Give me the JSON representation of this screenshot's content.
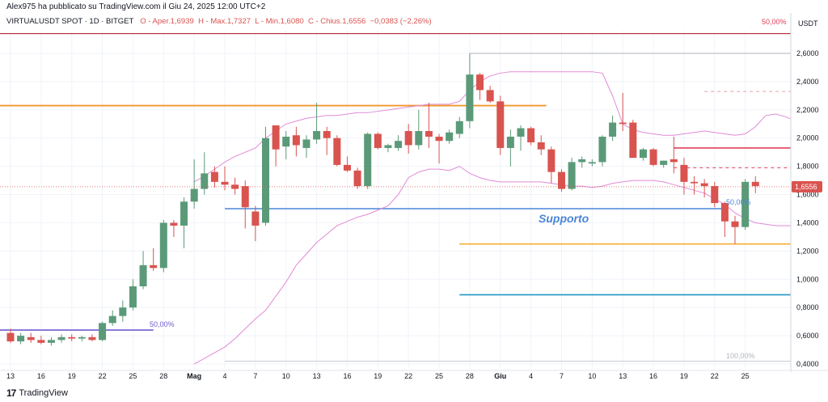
{
  "header": {
    "published": "Alex975 ha pubblicato su TradingView.com il Giu 24, 2025 12:00 UTC+2"
  },
  "symbol_bar": {
    "name": "VIRTUALUSDT SPOT · 1D · BITGET",
    "open": "O - Aper.1,6939",
    "high": "H - Max.1,7327",
    "low": "L - Min.1,6080",
    "close": "C - Chius.1,6556",
    "change": "−0,0383 (−2,26%)"
  },
  "footer": {
    "brand": "TradingView",
    "logo": "17"
  },
  "colors": {
    "up": "#5b9a78",
    "down": "#d9534f",
    "band": "#e08ad6",
    "support_line": "#4a86d6",
    "resistance": "#f0962f",
    "purple": "#6f5ccf",
    "orange_line": "#f5a623",
    "teal": "#2196c4",
    "red_level": "#e0405a"
  },
  "chart_data": {
    "type": "candlestick",
    "currency": "USDT",
    "ylim": [
      0.38,
      2.72
    ],
    "y_ticks": [
      "0,4000",
      "0,6000",
      "0,8000",
      "1,0000",
      "1,2000",
      "1,4000",
      "1,6000",
      "1,8000",
      "2,0000",
      "2,2000",
      "2,4000",
      "2,6000"
    ],
    "y_tick_values": [
      0.4,
      0.6,
      0.8,
      1.0,
      1.2,
      1.4,
      1.6,
      1.8,
      2.0,
      2.2,
      2.4,
      2.6
    ],
    "x_ticks": [
      "13",
      "16",
      "19",
      "22",
      "25",
      "28",
      "Mag",
      "4",
      "7",
      "10",
      "13",
      "16",
      "19",
      "22",
      "25",
      "28",
      "Giu",
      "4",
      "7",
      "10",
      "13",
      "16",
      "19",
      "22",
      "25"
    ],
    "x_tick_index": [
      0,
      3,
      6,
      9,
      12,
      15,
      18,
      21,
      24,
      27,
      30,
      33,
      36,
      39,
      42,
      45,
      48,
      51,
      54,
      57,
      60,
      63,
      66,
      69,
      72
    ],
    "candles": [
      {
        "o": 0.62,
        "h": 0.65,
        "l": 0.55,
        "c": 0.56
      },
      {
        "o": 0.56,
        "h": 0.62,
        "l": 0.54,
        "c": 0.6
      },
      {
        "o": 0.59,
        "h": 0.62,
        "l": 0.55,
        "c": 0.57
      },
      {
        "o": 0.57,
        "h": 0.6,
        "l": 0.54,
        "c": 0.55
      },
      {
        "o": 0.55,
        "h": 0.59,
        "l": 0.53,
        "c": 0.57
      },
      {
        "o": 0.57,
        "h": 0.61,
        "l": 0.55,
        "c": 0.59
      },
      {
        "o": 0.59,
        "h": 0.61,
        "l": 0.56,
        "c": 0.58
      },
      {
        "o": 0.58,
        "h": 0.6,
        "l": 0.56,
        "c": 0.59
      },
      {
        "o": 0.59,
        "h": 0.61,
        "l": 0.56,
        "c": 0.57
      },
      {
        "o": 0.57,
        "h": 0.7,
        "l": 0.56,
        "c": 0.69
      },
      {
        "o": 0.69,
        "h": 0.78,
        "l": 0.67,
        "c": 0.74
      },
      {
        "o": 0.74,
        "h": 0.85,
        "l": 0.7,
        "c": 0.8
      },
      {
        "o": 0.8,
        "h": 1.0,
        "l": 0.78,
        "c": 0.95
      },
      {
        "o": 0.95,
        "h": 1.2,
        "l": 0.93,
        "c": 1.1
      },
      {
        "o": 1.1,
        "h": 1.22,
        "l": 1.06,
        "c": 1.08
      },
      {
        "o": 1.08,
        "h": 1.42,
        "l": 1.05,
        "c": 1.4
      },
      {
        "o": 1.4,
        "h": 1.42,
        "l": 1.3,
        "c": 1.38
      },
      {
        "o": 1.38,
        "h": 1.58,
        "l": 1.22,
        "c": 1.55
      },
      {
        "o": 1.55,
        "h": 1.85,
        "l": 1.5,
        "c": 1.64
      },
      {
        "o": 1.64,
        "h": 1.9,
        "l": 1.6,
        "c": 1.75
      },
      {
        "o": 1.76,
        "h": 1.8,
        "l": 1.65,
        "c": 1.69
      },
      {
        "o": 1.69,
        "h": 1.8,
        "l": 1.63,
        "c": 1.67
      },
      {
        "o": 1.67,
        "h": 1.72,
        "l": 1.6,
        "c": 1.64
      },
      {
        "o": 1.66,
        "h": 1.7,
        "l": 1.36,
        "c": 1.51
      },
      {
        "o": 1.48,
        "h": 1.52,
        "l": 1.27,
        "c": 1.38
      },
      {
        "o": 1.4,
        "h": 2.08,
        "l": 1.38,
        "c": 2.0
      },
      {
        "o": 2.09,
        "h": 2.09,
        "l": 1.8,
        "c": 1.92
      },
      {
        "o": 1.94,
        "h": 2.05,
        "l": 1.85,
        "c": 2.01
      },
      {
        "o": 2.02,
        "h": 2.08,
        "l": 1.87,
        "c": 1.95
      },
      {
        "o": 1.93,
        "h": 2.02,
        "l": 1.86,
        "c": 1.99
      },
      {
        "o": 1.99,
        "h": 2.25,
        "l": 1.96,
        "c": 2.05
      },
      {
        "o": 2.05,
        "h": 2.08,
        "l": 1.88,
        "c": 2.0
      },
      {
        "o": 2.0,
        "h": 2.02,
        "l": 1.8,
        "c": 1.81
      },
      {
        "o": 1.81,
        "h": 1.87,
        "l": 1.76,
        "c": 1.77
      },
      {
        "o": 1.77,
        "h": 1.79,
        "l": 1.64,
        "c": 1.66
      },
      {
        "o": 1.66,
        "h": 2.04,
        "l": 1.64,
        "c": 2.03
      },
      {
        "o": 2.03,
        "h": 2.04,
        "l": 1.92,
        "c": 1.93
      },
      {
        "o": 1.93,
        "h": 1.96,
        "l": 1.9,
        "c": 1.95
      },
      {
        "o": 1.93,
        "h": 2.02,
        "l": 1.91,
        "c": 1.98
      },
      {
        "o": 2.05,
        "h": 2.1,
        "l": 1.89,
        "c": 1.95
      },
      {
        "o": 1.95,
        "h": 2.2,
        "l": 1.92,
        "c": 2.05
      },
      {
        "o": 2.05,
        "h": 2.25,
        "l": 1.93,
        "c": 2.01
      },
      {
        "o": 2.01,
        "h": 2.03,
        "l": 1.82,
        "c": 1.98
      },
      {
        "o": 1.98,
        "h": 2.06,
        "l": 1.96,
        "c": 2.04
      },
      {
        "o": 2.03,
        "h": 2.15,
        "l": 2.0,
        "c": 2.12
      },
      {
        "o": 2.12,
        "h": 2.6,
        "l": 2.07,
        "c": 2.45
      },
      {
        "o": 2.45,
        "h": 2.46,
        "l": 2.27,
        "c": 2.34
      },
      {
        "o": 2.34,
        "h": 2.37,
        "l": 2.25,
        "c": 2.26
      },
      {
        "o": 2.26,
        "h": 2.3,
        "l": 1.88,
        "c": 1.93
      },
      {
        "o": 1.93,
        "h": 2.06,
        "l": 1.8,
        "c": 2.01
      },
      {
        "o": 2.01,
        "h": 2.09,
        "l": 1.91,
        "c": 2.07
      },
      {
        "o": 2.07,
        "h": 2.08,
        "l": 1.95,
        "c": 1.97
      },
      {
        "o": 1.97,
        "h": 2.02,
        "l": 1.88,
        "c": 1.92
      },
      {
        "o": 1.92,
        "h": 1.94,
        "l": 1.68,
        "c": 1.76
      },
      {
        "o": 1.76,
        "h": 1.78,
        "l": 1.62,
        "c": 1.64
      },
      {
        "o": 1.64,
        "h": 1.86,
        "l": 1.63,
        "c": 1.83
      },
      {
        "o": 1.83,
        "h": 1.87,
        "l": 1.79,
        "c": 1.85
      },
      {
        "o": 1.82,
        "h": 1.85,
        "l": 1.8,
        "c": 1.83
      },
      {
        "o": 1.83,
        "h": 2.02,
        "l": 1.8,
        "c": 2.01
      },
      {
        "o": 2.01,
        "h": 2.16,
        "l": 1.98,
        "c": 2.11
      },
      {
        "o": 2.11,
        "h": 2.32,
        "l": 2.05,
        "c": 2.1
      },
      {
        "o": 2.11,
        "h": 2.13,
        "l": 1.86,
        "c": 1.86
      },
      {
        "o": 1.86,
        "h": 1.93,
        "l": 1.84,
        "c": 1.92
      },
      {
        "o": 1.92,
        "h": 1.93,
        "l": 1.8,
        "c": 1.81
      },
      {
        "o": 1.81,
        "h": 1.84,
        "l": 1.79,
        "c": 1.84
      },
      {
        "o": 1.85,
        "h": 2.01,
        "l": 1.75,
        "c": 1.83
      },
      {
        "o": 1.81,
        "h": 1.86,
        "l": 1.6,
        "c": 1.69
      },
      {
        "o": 1.69,
        "h": 1.73,
        "l": 1.6,
        "c": 1.68
      },
      {
        "o": 1.68,
        "h": 1.71,
        "l": 1.58,
        "c": 1.66
      },
      {
        "o": 1.66,
        "h": 1.69,
        "l": 1.51,
        "c": 1.54
      },
      {
        "o": 1.54,
        "h": 1.55,
        "l": 1.3,
        "c": 1.41
      },
      {
        "o": 1.41,
        "h": 1.45,
        "l": 1.25,
        "c": 1.37
      },
      {
        "o": 1.37,
        "h": 1.71,
        "l": 1.35,
        "c": 1.69
      },
      {
        "o": 1.69,
        "h": 1.73,
        "l": 1.61,
        "c": 1.66
      }
    ],
    "bollinger": {
      "start_index": 18,
      "upper": [
        1.69,
        1.73,
        1.78,
        1.83,
        1.87,
        1.9,
        1.93,
        2.0,
        2.05,
        2.1,
        2.12,
        2.14,
        2.15,
        2.16,
        2.16,
        2.17,
        2.18,
        2.18,
        2.19,
        2.2,
        2.21,
        2.22,
        2.23,
        2.24,
        2.24,
        2.24,
        2.26,
        2.34,
        2.4,
        2.44,
        2.46,
        2.47,
        2.47,
        2.47,
        2.47,
        2.47,
        2.47,
        2.47,
        2.47,
        2.47,
        2.46,
        2.3,
        2.1,
        2.06,
        2.04,
        2.03,
        2.02,
        2.02,
        2.03,
        2.04,
        2.05,
        2.04,
        2.03,
        2.02,
        2.03,
        2.08,
        2.16,
        2.17,
        2.15,
        2.12
      ],
      "lower": [
        0.4,
        0.44,
        0.48,
        0.52,
        0.58,
        0.65,
        0.72,
        0.78,
        0.88,
        0.98,
        1.1,
        1.18,
        1.26,
        1.32,
        1.38,
        1.41,
        1.44,
        1.46,
        1.49,
        1.52,
        1.6,
        1.72,
        1.76,
        1.78,
        1.78,
        1.77,
        1.8,
        1.75,
        1.72,
        1.7,
        1.69,
        1.69,
        1.69,
        1.69,
        1.69,
        1.68,
        1.67,
        1.66,
        1.66,
        1.65,
        1.66,
        1.68,
        1.69,
        1.7,
        1.7,
        1.7,
        1.69,
        1.67,
        1.65,
        1.63,
        1.61,
        1.57,
        1.53,
        1.47,
        1.43,
        1.4,
        1.39,
        1.38,
        1.38,
        1.38
      ]
    },
    "annotations": {
      "support_label": "Supporto",
      "fib_50_top": "50,00%",
      "fib_50_left": "50,00%",
      "fib_50_right": "50,00%",
      "fib_100": "100,00%",
      "last_price": "1,6556"
    },
    "levels": {
      "top_red": 2.74,
      "orange_resist": 2.23,
      "grey_top": 2.6,
      "support": 1.5,
      "orange_low": 1.25,
      "teal_low": 0.89,
      "purple_low": 0.64,
      "red_1": 1.93,
      "red_dashed": 1.79,
      "grey_dashed": 2.33,
      "grey_bottom": 0.42
    }
  }
}
